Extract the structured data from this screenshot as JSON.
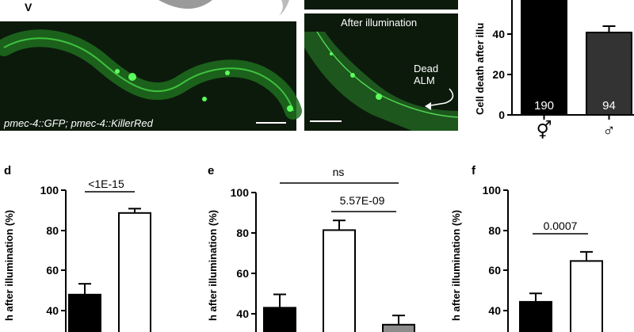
{
  "images": {
    "left_caption": "pmec-4::GFP; pmec-4::KillerRed",
    "right_title": "After illumination",
    "arrow_label_1": "Dead",
    "arrow_label_2": "ALM",
    "top_left_glyph": "V"
  },
  "chart_data": [
    {
      "panel": "",
      "type": "bar",
      "ylabel": "Cell death after illu",
      "ylim": [
        0,
        100
      ],
      "yticks": [
        "40",
        "20",
        "0"
      ],
      "categories": [
        "⚥",
        "♂"
      ],
      "values": [
        100,
        52
      ],
      "errors": [
        0,
        4
      ],
      "bar_labels": [
        "190",
        "94"
      ],
      "colors": [
        "#000000",
        "#333333"
      ]
    },
    {
      "panel": "d",
      "type": "bar",
      "ylabel": "h after illumination (%)",
      "ylim": [
        0,
        100
      ],
      "yticks": [
        "100",
        "80",
        "60",
        "40"
      ],
      "values": [
        56.5,
        90.5
      ],
      "errors": [
        4.5,
        1.8
      ],
      "colors": [
        "#000000",
        "#ffffff"
      ],
      "annotations": [
        "<1E-15"
      ]
    },
    {
      "panel": "e",
      "type": "bar",
      "ylabel": "h after illumination (%)",
      "ylim": [
        0,
        100
      ],
      "yticks": [
        "100",
        "80",
        "60",
        "40"
      ],
      "values": [
        52.5,
        84.5,
        45.5
      ],
      "errors": [
        5.5,
        4.0,
        3.8
      ],
      "colors": [
        "#000000",
        "#ffffff",
        "#8c8c8c"
      ],
      "annotations": [
        "ns",
        "5.57E-09"
      ]
    },
    {
      "panel": "f",
      "type": "bar",
      "ylabel": "h after illumination (%)",
      "ylim": [
        0,
        100
      ],
      "yticks": [
        "100",
        "80",
        "60",
        "40"
      ],
      "values": [
        53.5,
        70.5
      ],
      "errors": [
        3.5,
        3.8
      ],
      "colors": [
        "#000000",
        "#ffffff"
      ],
      "annotations": [
        "0.0007"
      ]
    }
  ]
}
